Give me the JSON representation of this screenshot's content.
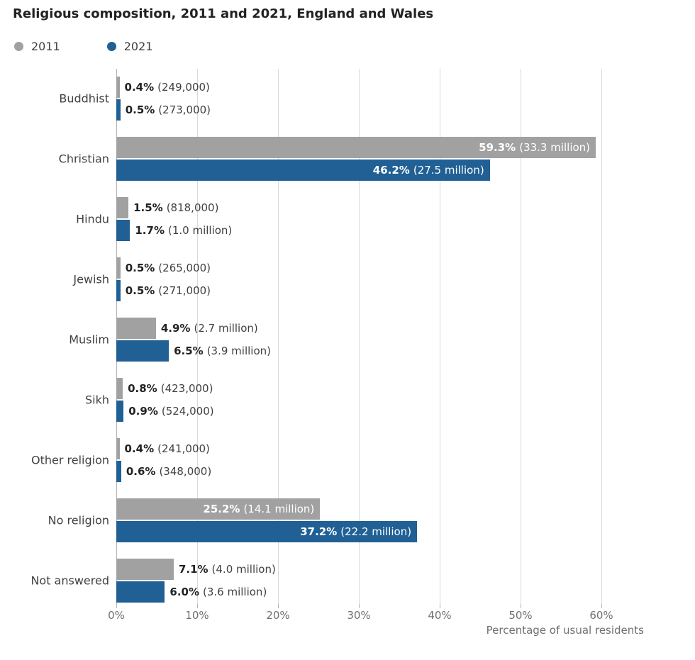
{
  "title": "Religious composition, 2011 and 2021, England and Wales",
  "legend": {
    "items": [
      {
        "label": "2011",
        "color": "#a1a1a1"
      },
      {
        "label": "2021",
        "color": "#206095"
      }
    ]
  },
  "chart_data": {
    "type": "bar",
    "orientation": "horizontal",
    "title": "Religious composition, 2011 and 2021, England and Wales",
    "xlabel": "Percentage of usual residents",
    "xlim": [
      0,
      60
    ],
    "grid": true,
    "legend_position": "top-left",
    "x_ticks": [
      {
        "value": 0,
        "label": "0%"
      },
      {
        "value": 10,
        "label": "10%"
      },
      {
        "value": 20,
        "label": "20%"
      },
      {
        "value": 30,
        "label": "30%"
      },
      {
        "value": 40,
        "label": "40%"
      },
      {
        "value": 50,
        "label": "50%"
      },
      {
        "value": 60,
        "label": "60%"
      }
    ],
    "categories": [
      "Buddhist",
      "Christian",
      "Hindu",
      "Jewish",
      "Muslim",
      "Sikh",
      "Other religion",
      "No religion",
      "Not answered"
    ],
    "series": [
      {
        "name": "2011",
        "color": "#a1a1a1",
        "values": [
          0.4,
          59.3,
          1.5,
          0.5,
          4.9,
          0.8,
          0.4,
          25.2,
          7.1
        ],
        "value_labels": [
          "0.4%",
          "59.3%",
          "1.5%",
          "0.5%",
          "4.9%",
          "0.8%",
          "0.4%",
          "25.2%",
          "7.1%"
        ],
        "count_labels": [
          "(249,000)",
          "(33.3 million)",
          "(818,000)",
          "(265,000)",
          "(2.7 million)",
          "(423,000)",
          "(241,000)",
          "(14.1 million)",
          "(4.0 million)"
        ]
      },
      {
        "name": "2021",
        "color": "#206095",
        "values": [
          0.5,
          46.2,
          1.7,
          0.5,
          6.5,
          0.9,
          0.6,
          37.2,
          6.0
        ],
        "value_labels": [
          "0.5%",
          "46.2%",
          "1.7%",
          "0.5%",
          "6.5%",
          "0.9%",
          "0.6%",
          "37.2%",
          "6.0%"
        ],
        "count_labels": [
          "(273,000)",
          "(27.5 million)",
          "(1.0 million)",
          "(271,000)",
          "(3.9 million)",
          "(524,000)",
          "(348,000)",
          "(22.2 million)",
          "(3.6 million)"
        ]
      }
    ],
    "label_inside_threshold": 20
  },
  "colors": {
    "gridline": "#d9d9d9",
    "zero_line": "#b3b3b3",
    "tick": "#b3b3b3",
    "title_text": "#222222",
    "category_text": "#414042",
    "pct_text": "#222222",
    "count_text": "#414042",
    "axis_text": "#707070",
    "inside_label_text": "#ffffff",
    "background": "#ffffff"
  }
}
